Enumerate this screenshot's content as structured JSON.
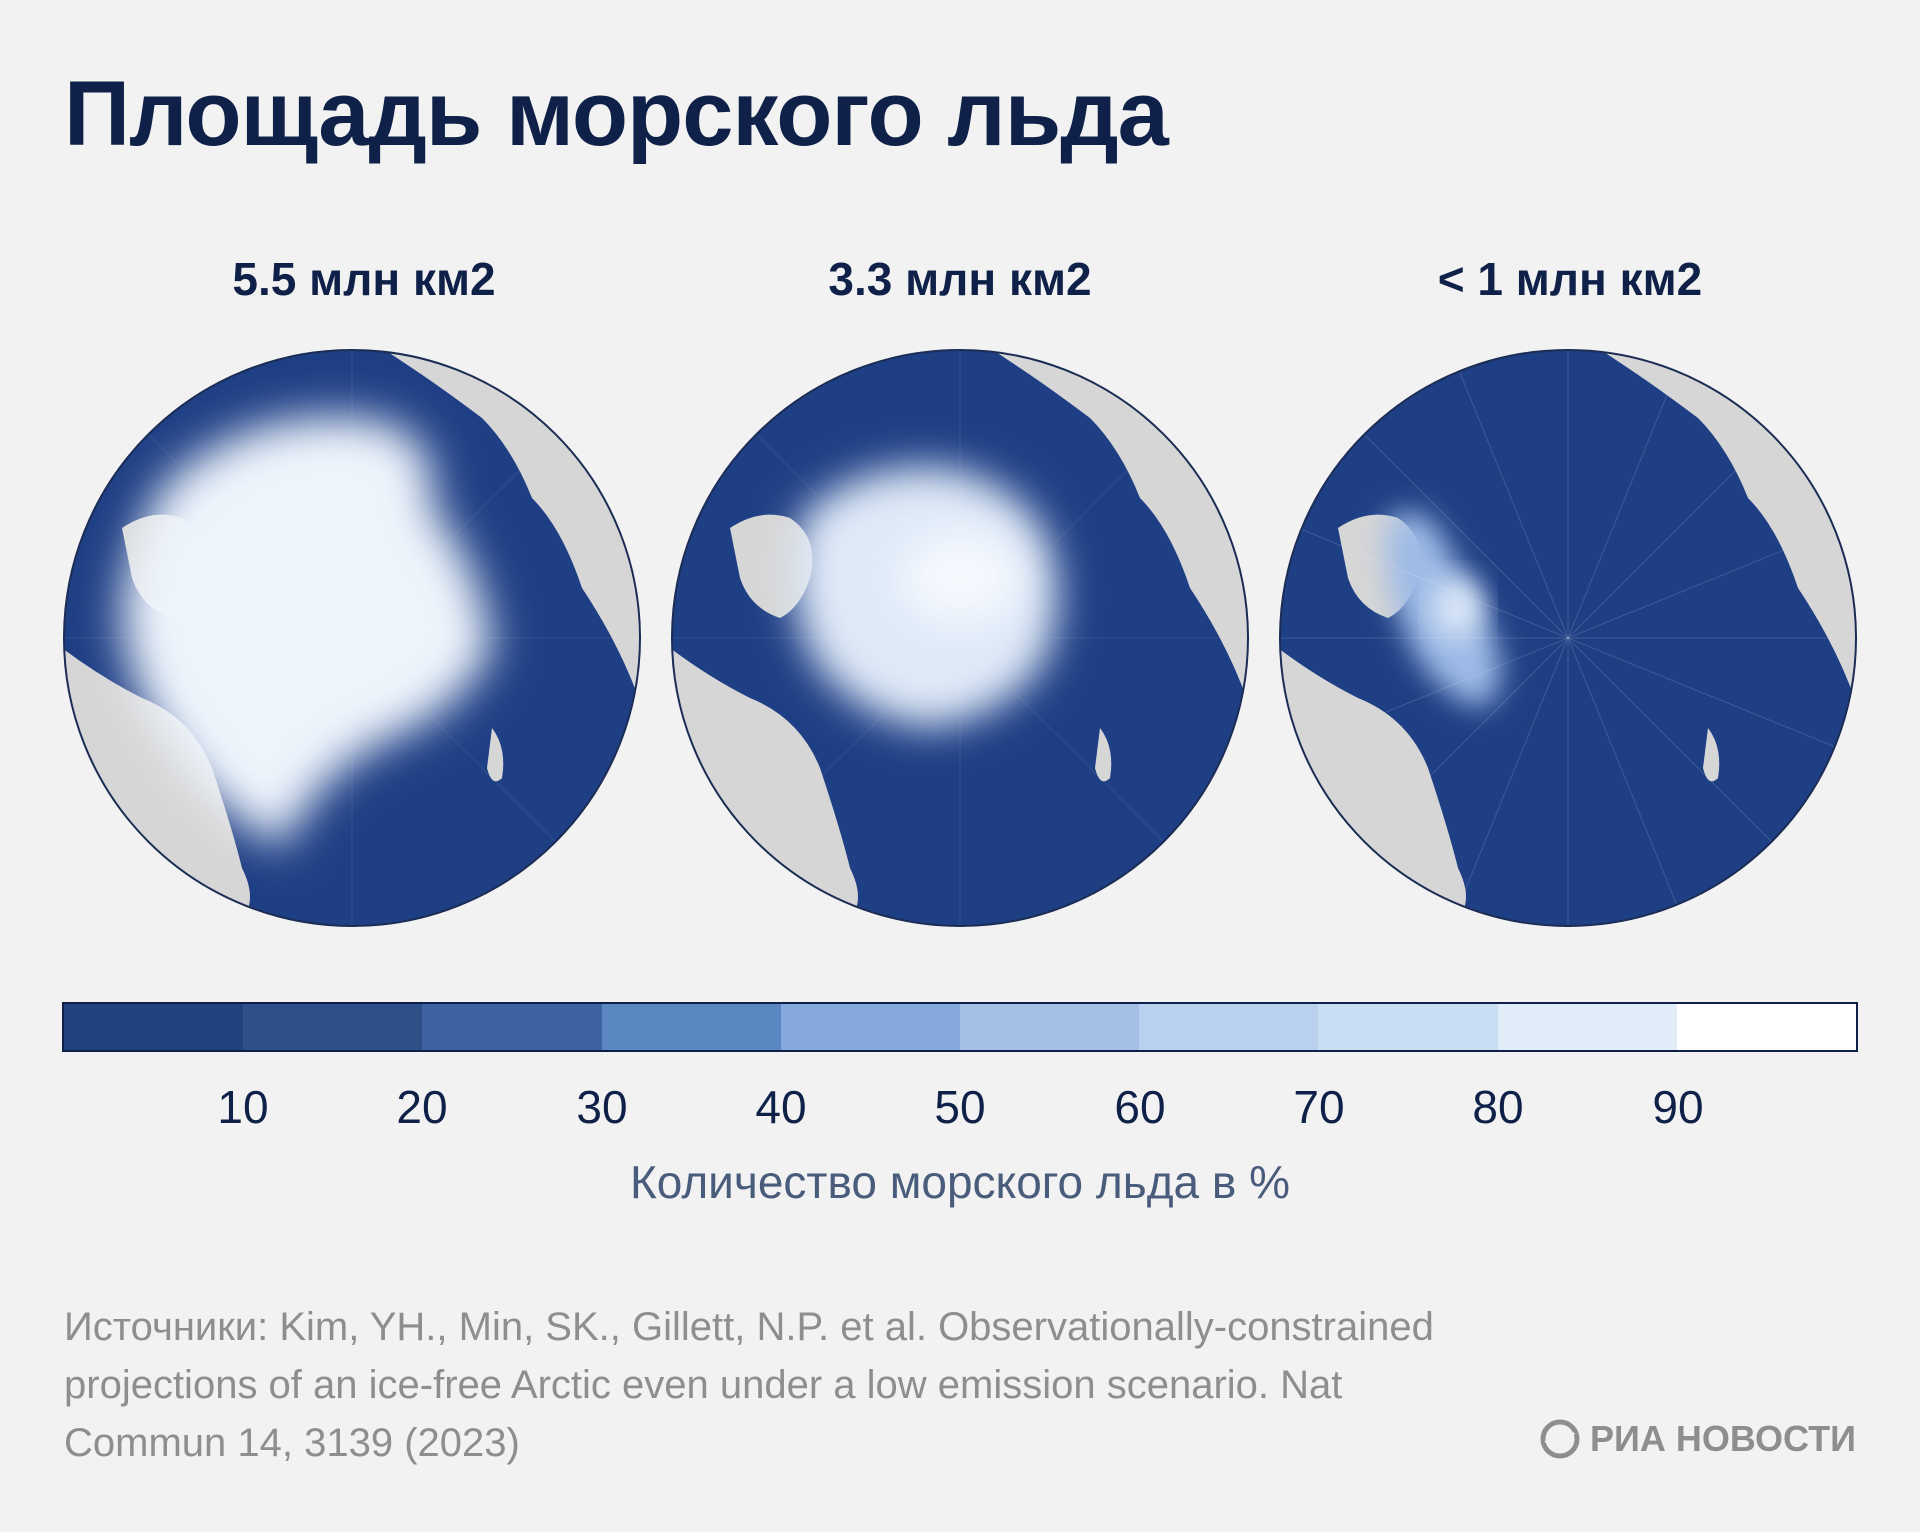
{
  "title": "Площадь морского льда",
  "maps": [
    {
      "label": "5.5 млн км2",
      "ice": "large"
    },
    {
      "label": "3.3 млн км2",
      "ice": "medium"
    },
    {
      "label": "< 1 млн км2",
      "ice": "small"
    }
  ],
  "colors": {
    "ocean": "#1f3f85",
    "land": "#d6d6d6",
    "ice": "#eef4fc",
    "background": "#f2f2f2",
    "text": "#0f2148"
  },
  "colorbar": {
    "colors": [
      "#22417f",
      "#2e4f88",
      "#3d63a3",
      "#5a86c2",
      "#86a9dd",
      "#a6bfe6",
      "#b9d1ef",
      "#cadef3",
      "#e1ecf9",
      "#ffffff"
    ],
    "ticks": [
      "10",
      "20",
      "30",
      "40",
      "50",
      "60",
      "70",
      "80",
      "90"
    ],
    "caption": "Количество морского льда в %"
  },
  "source": "Источники: Kim, YH., Min, SK., Gillett, N.P. et al. Observationally-constrained projections of an ice-free Arctic even under a low emission scenario. Nat Commun 14, 3139 (2023)",
  "brand": "РИА НОВОСТИ"
}
